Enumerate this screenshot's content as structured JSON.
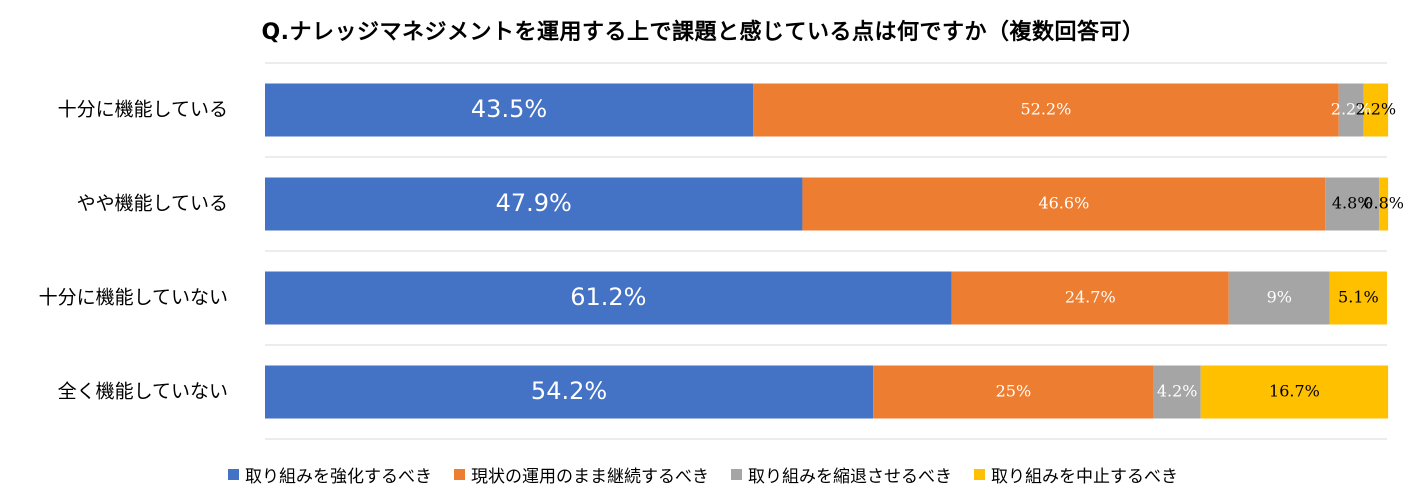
{
  "chart_data": {
    "type": "bar",
    "stacked": true,
    "orientation": "horizontal",
    "title": "Q.ナレッジマネジメントを運用する上で課題と感じている点は何ですか（複数回答可）",
    "categories": [
      "十分に機能している",
      "やや機能している",
      "十分に機能していない",
      "全く機能していない"
    ],
    "series": [
      {
        "name": "取り組みを強化するべき",
        "color": "#4472C4",
        "values": [
          43.5,
          47.9,
          61.2,
          54.2
        ],
        "labels": [
          "43.5%",
          "47.9%",
          "61.2%",
          "54.2%"
        ]
      },
      {
        "name": "現状の運用のまま継続するべき",
        "color": "#ED7D31",
        "values": [
          52.2,
          46.6,
          24.7,
          25
        ],
        "labels": [
          "52.2%",
          "46.6%",
          "24.7%",
          "25%"
        ]
      },
      {
        "name": "取り組みを縮退させるべき",
        "color": "#A5A5A5",
        "values": [
          2.2,
          4.8,
          9,
          4.2
        ],
        "labels": [
          "2.2%",
          "4.8%",
          "9%",
          "4.2%"
        ]
      },
      {
        "name": "取り組みを中止するべき",
        "color": "#FFC000",
        "values": [
          2.2,
          0.8,
          5.1,
          16.7
        ],
        "labels": [
          "2.2%",
          "0.8%",
          "5.1%",
          "16.7%"
        ]
      }
    ],
    "xlim": [
      0,
      100
    ],
    "grid": true,
    "legend_position": "bottom"
  }
}
